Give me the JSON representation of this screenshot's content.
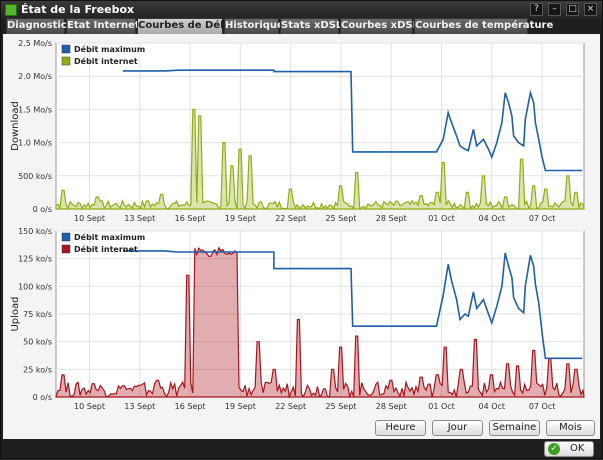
{
  "window": {
    "title": "État de la Freebox",
    "help": "?",
    "minimize": "–",
    "maximize": "□",
    "close": "×"
  },
  "tabs": [
    {
      "label": "Diagnostic",
      "active": false
    },
    {
      "label": "Etat Internet",
      "active": false
    },
    {
      "label": "Courbes de Débit",
      "active": true
    },
    {
      "label": "Historique",
      "active": false
    },
    {
      "label": "Stats xDSL",
      "active": false
    },
    {
      "label": "Courbes xDSL",
      "active": false
    },
    {
      "label": "Courbes de température",
      "active": false
    }
  ],
  "chart_data": [
    {
      "type": "line",
      "ylabel": "Download",
      "yticks": [
        "0 o/s",
        "500 ko/s",
        "1.0 Mo/s",
        "1.5 Mo/s",
        "2.0 Mo/s",
        "2.5 Mo/s"
      ],
      "ylim": [
        0,
        2.5
      ],
      "xticks": [
        "10 Sept",
        "13 Sept",
        "16 Sept",
        "19 Sept",
        "22 Sept",
        "25 Sept",
        "28 Sept",
        "01 Oct",
        "04 Oct",
        "07 Oct"
      ],
      "xlim": [
        8,
        39.5
      ],
      "legend": [
        {
          "label": "Débit maximum",
          "color": "#1f5fa8"
        },
        {
          "label": "Débit internet",
          "color": "#8fae16"
        }
      ],
      "legend_position": "top-left",
      "series": [
        {
          "name": "Débit maximum",
          "color": "#1f5fa8",
          "points": [
            [
              12,
              2.08
            ],
            [
              14.5,
              2.08
            ],
            [
              15.3,
              2.09
            ],
            [
              21,
              2.09
            ],
            [
              21,
              2.07
            ],
            [
              25.6,
              2.07
            ],
            [
              25.7,
              0.86
            ],
            [
              30.7,
              0.86
            ],
            [
              31.1,
              1.05
            ],
            [
              31.4,
              1.45
            ],
            [
              31.6,
              1.3
            ],
            [
              31.9,
              1.1
            ],
            [
              32.1,
              0.95
            ],
            [
              32.4,
              0.9
            ],
            [
              32.6,
              0.88
            ],
            [
              32.9,
              1.2
            ],
            [
              33.1,
              0.95
            ],
            [
              33.5,
              1.05
            ],
            [
              33.8,
              0.9
            ],
            [
              34.0,
              0.78
            ],
            [
              34.3,
              1.0
            ],
            [
              34.6,
              1.3
            ],
            [
              34.8,
              1.75
            ],
            [
              35.0,
              1.6
            ],
            [
              35.2,
              1.4
            ],
            [
              35.3,
              1.1
            ],
            [
              35.6,
              1.0
            ],
            [
              35.9,
              0.95
            ],
            [
              36.0,
              1.35
            ],
            [
              36.3,
              1.75
            ],
            [
              36.5,
              1.6
            ],
            [
              36.6,
              1.3
            ],
            [
              36.8,
              1.05
            ],
            [
              37.0,
              0.78
            ],
            [
              37.2,
              0.58
            ],
            [
              39.4,
              0.58
            ]
          ]
        },
        {
          "name": "Débit internet",
          "color": "#8fae16",
          "spikes": [
            [
              8.4,
              0.28
            ],
            [
              10.5,
              0.18
            ],
            [
              13.5,
              0.12
            ],
            [
              14.3,
              0.22
            ],
            [
              16.2,
              1.5
            ],
            [
              16.6,
              1.4
            ],
            [
              18.0,
              1.0
            ],
            [
              18.5,
              0.65
            ],
            [
              19.0,
              0.9
            ],
            [
              19.6,
              0.8
            ],
            [
              22.0,
              0.3
            ],
            [
              25.0,
              0.35
            ],
            [
              26.0,
              0.55
            ],
            [
              29.8,
              0.2
            ],
            [
              30.7,
              0.25
            ],
            [
              31.1,
              0.7
            ],
            [
              32.5,
              0.25
            ],
            [
              33.5,
              0.5
            ],
            [
              34.8,
              0.18
            ],
            [
              35.8,
              0.75
            ],
            [
              36.5,
              0.35
            ],
            [
              37.2,
              0.3
            ],
            [
              38.5,
              0.5
            ],
            [
              39.0,
              0.25
            ]
          ]
        }
      ]
    },
    {
      "type": "line",
      "ylabel": "Upload",
      "yticks": [
        "0 o/s",
        "25 ko/s",
        "50 ko/s",
        "75 ko/s",
        "100 ko/s",
        "125 ko/s",
        "150 ko/s"
      ],
      "ylim": [
        0,
        150
      ],
      "xticks": [
        "10 Sept",
        "13 Sept",
        "16 Sept",
        "19 Sept",
        "22 Sept",
        "25 Sept",
        "28 Sept",
        "01 Oct",
        "04 Oct",
        "07 Oct"
      ],
      "xlim": [
        8,
        39.5
      ],
      "legend": [
        {
          "label": "Débit maximum",
          "color": "#1f5fa8"
        },
        {
          "label": "Débit internet",
          "color": "#a8141c"
        }
      ],
      "legend_position": "top-left",
      "series": [
        {
          "name": "Débit maximum",
          "color": "#1f5fa8",
          "points": [
            [
              12,
              132
            ],
            [
              14.5,
              132
            ],
            [
              15.2,
              131
            ],
            [
              21,
              131
            ],
            [
              21,
              116
            ],
            [
              25.6,
              116
            ],
            [
              25.7,
              64
            ],
            [
              30.7,
              64
            ],
            [
              31.1,
              92
            ],
            [
              31.4,
              120
            ],
            [
              31.6,
              105
            ],
            [
              31.9,
              88
            ],
            [
              32.1,
              70
            ],
            [
              32.4,
              75
            ],
            [
              32.6,
              73
            ],
            [
              32.9,
              95
            ],
            [
              33.1,
              80
            ],
            [
              33.5,
              88
            ],
            [
              33.8,
              75
            ],
            [
              34.0,
              67
            ],
            [
              34.3,
              82
            ],
            [
              34.6,
              100
            ],
            [
              34.8,
              130
            ],
            [
              35.0,
              118
            ],
            [
              35.2,
              108
            ],
            [
              35.3,
              90
            ],
            [
              35.6,
              80
            ],
            [
              35.9,
              76
            ],
            [
              36.0,
              100
            ],
            [
              36.3,
              128
            ],
            [
              36.5,
              118
            ],
            [
              36.6,
              102
            ],
            [
              36.8,
              85
            ],
            [
              37.0,
              58
            ],
            [
              37.2,
              35
            ],
            [
              39.4,
              35
            ]
          ]
        },
        {
          "name": "Débit internet",
          "color": "#a8141c",
          "block": [
            [
              16.2,
              135
            ],
            [
              18.8,
              135
            ]
          ],
          "spikes": [
            [
              8.4,
              20
            ],
            [
              10.2,
              12
            ],
            [
              12.0,
              10
            ],
            [
              14.0,
              15
            ],
            [
              15.8,
              110
            ],
            [
              20.0,
              50
            ],
            [
              21.0,
              25
            ],
            [
              22.5,
              70
            ],
            [
              24.5,
              25
            ],
            [
              25.0,
              45
            ],
            [
              26.0,
              55
            ],
            [
              28.0,
              15
            ],
            [
              29.8,
              18
            ],
            [
              30.7,
              20
            ],
            [
              31.2,
              45
            ],
            [
              32.2,
              25
            ],
            [
              33.0,
              52
            ],
            [
              34.0,
              20
            ],
            [
              35.0,
              30
            ],
            [
              35.5,
              28
            ],
            [
              36.5,
              42
            ],
            [
              37.5,
              35
            ],
            [
              38.5,
              30
            ],
            [
              39.0,
              25
            ]
          ]
        }
      ]
    }
  ],
  "range_buttons": [
    "Heure",
    "Jour",
    "Semaine",
    "Mois"
  ],
  "ok_label": "OK"
}
